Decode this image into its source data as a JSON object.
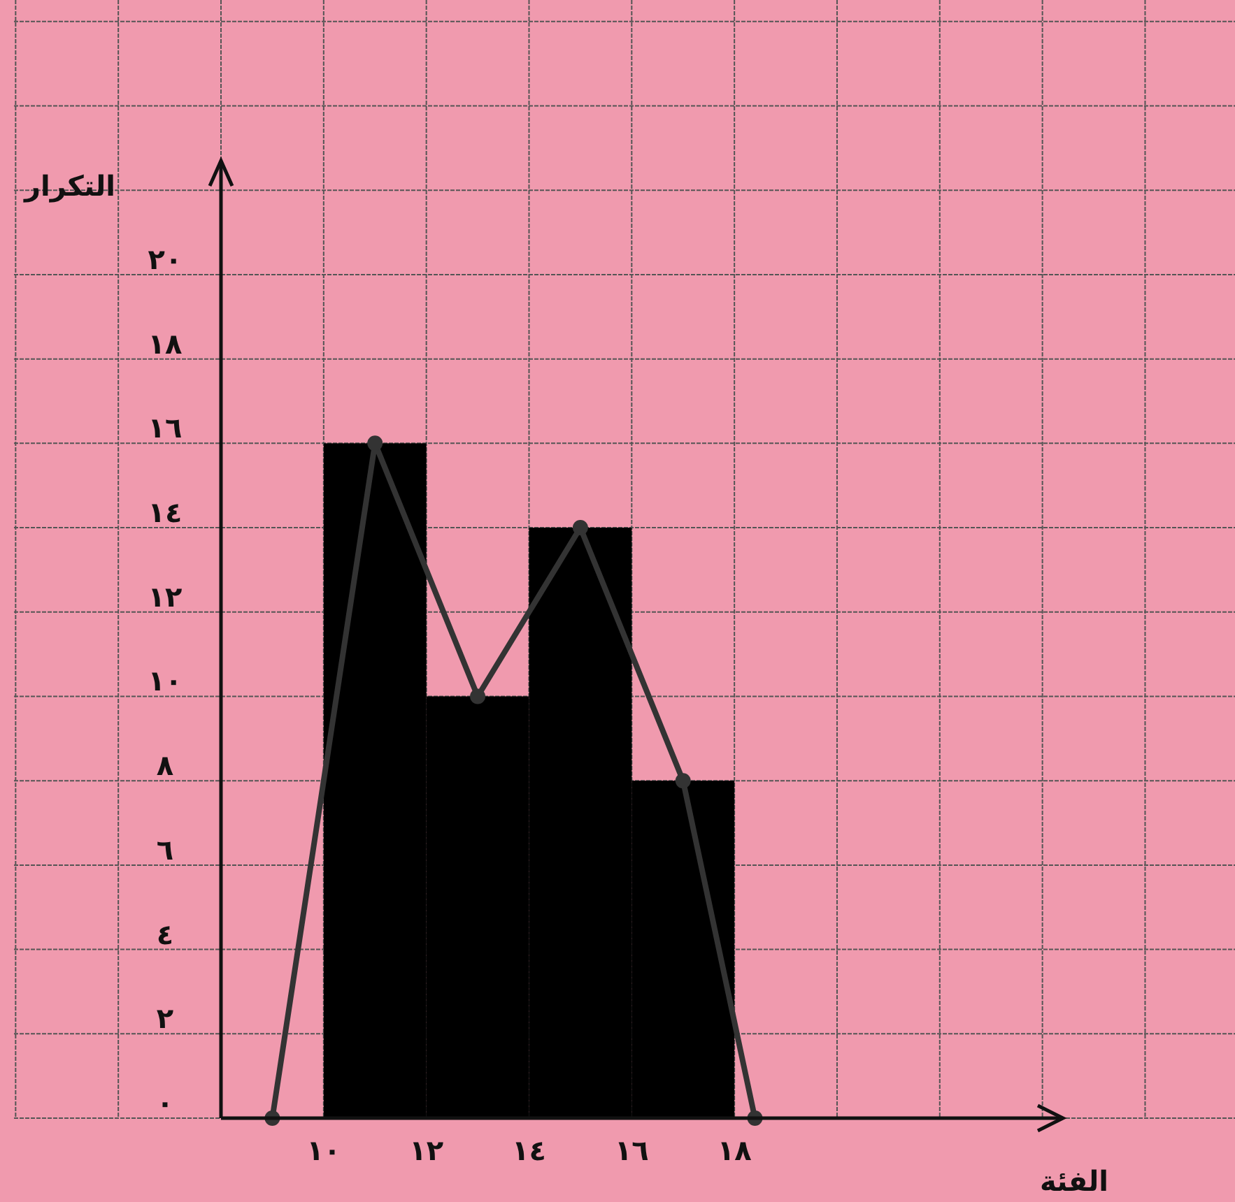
{
  "chart_data": {
    "type": "histogram",
    "xlabel": "الفئة",
    "ylabel": "التكرار",
    "bins": [
      10,
      12,
      14,
      16,
      18
    ],
    "values": [
      16,
      10,
      14,
      8
    ],
    "color": "#000000",
    "xlim": [
      8,
      24.4
    ],
    "ylim": [
      0,
      22.7
    ],
    "xticks": [
      {
        "value": 10,
        "label": "١٠"
      },
      {
        "value": 12,
        "label": "١٢"
      },
      {
        "value": 14,
        "label": "١٤"
      },
      {
        "value": 16,
        "label": "١٦"
      },
      {
        "value": 18,
        "label": "١٨"
      }
    ],
    "yticks": [
      {
        "value": 0,
        "label": "٠"
      },
      {
        "value": 2,
        "label": "٢"
      },
      {
        "value": 4,
        "label": "٤"
      },
      {
        "value": 6,
        "label": "٦"
      },
      {
        "value": 8,
        "label": "٨"
      },
      {
        "value": 10,
        "label": "١٠"
      },
      {
        "value": 12,
        "label": "١٢"
      },
      {
        "value": 14,
        "label": "١٤"
      },
      {
        "value": 16,
        "label": "١٦"
      },
      {
        "value": 18,
        "label": "١٨"
      },
      {
        "value": 20,
        "label": "٢٠"
      }
    ],
    "grid": true,
    "series": [
      {
        "type": "line",
        "x": [
          9,
          11,
          13,
          15,
          17,
          18.4
        ],
        "values": [
          0,
          16,
          10,
          14,
          8,
          0
        ],
        "color": "#333333",
        "marker": "circle"
      }
    ]
  }
}
